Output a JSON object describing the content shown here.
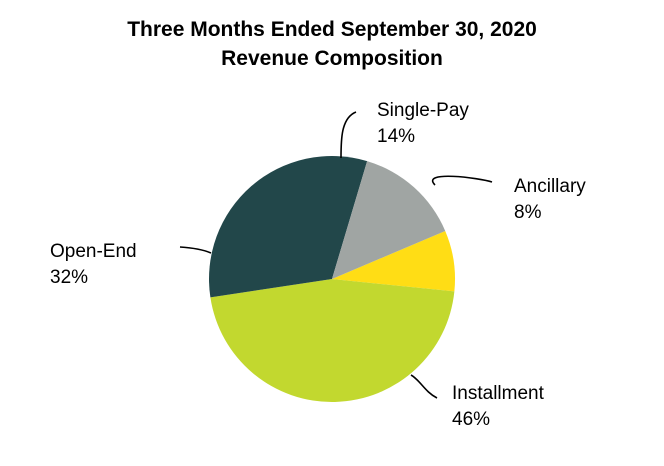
{
  "chart_data": {
    "type": "pie",
    "title": "Three Months Ended September 30, 2020",
    "subtitle": "Revenue Composition",
    "slices": [
      {
        "name": "Ancillary",
        "value": 8,
        "label": "8%",
        "color": "#ffdd15"
      },
      {
        "name": "Installment",
        "value": 46,
        "label": "46%",
        "color": "#c2d82f"
      },
      {
        "name": "Open-End",
        "value": 32,
        "label": "32%",
        "color": "#22474a"
      },
      {
        "name": "Single-Pay",
        "value": 14,
        "label": "14%",
        "color": "#a0a5a3"
      }
    ]
  }
}
